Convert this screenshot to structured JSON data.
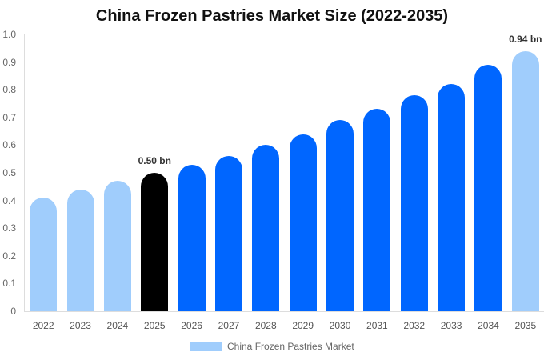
{
  "chart_data": {
    "type": "bar",
    "title": "China Frozen Pastries Market Size (2022-2035)",
    "xlabel": "",
    "ylabel": "",
    "ylim": [
      0,
      1.0
    ],
    "yticks": [
      "0",
      "0.1",
      "0.2",
      "0.3",
      "0.4",
      "0.5",
      "0.6",
      "0.7",
      "0.8",
      "0.9",
      "1.0"
    ],
    "grid": false,
    "legend_position": "bottom",
    "categories": [
      "2022",
      "2023",
      "2024",
      "2025",
      "2026",
      "2027",
      "2028",
      "2029",
      "2030",
      "2031",
      "2032",
      "2033",
      "2034",
      "2035"
    ],
    "series": [
      {
        "name": "China Frozen Pastries Market",
        "values": [
          0.41,
          0.44,
          0.47,
          0.5,
          0.53,
          0.56,
          0.6,
          0.64,
          0.69,
          0.73,
          0.78,
          0.82,
          0.89,
          0.94
        ]
      }
    ],
    "bar_colors": [
      "#a0cdfc",
      "#a0cdfc",
      "#a0cdfc",
      "#000000",
      "#0066ff",
      "#0066ff",
      "#0066ff",
      "#0066ff",
      "#0066ff",
      "#0066ff",
      "#0066ff",
      "#0066ff",
      "#0066ff",
      "#a0cdfc"
    ],
    "annotations": [
      {
        "category": "2025",
        "text": "0.50 bn"
      },
      {
        "category": "2035",
        "text": "0.94 bn"
      }
    ]
  },
  "legend": {
    "label": "China Frozen Pastries Market",
    "color": "#a0cdfc"
  }
}
